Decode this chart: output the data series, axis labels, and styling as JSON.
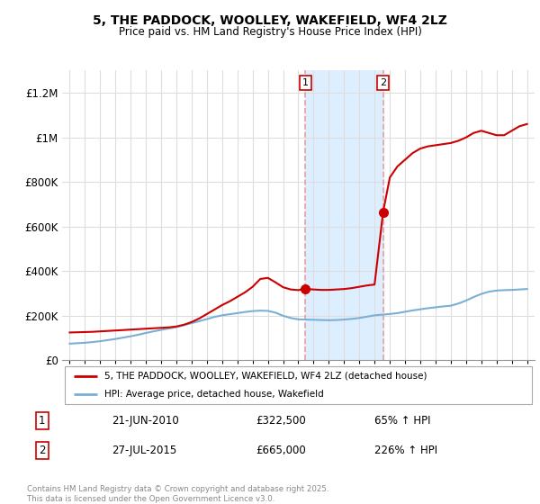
{
  "title": "5, THE PADDOCK, WOOLLEY, WAKEFIELD, WF4 2LZ",
  "subtitle": "Price paid vs. HM Land Registry's House Price Index (HPI)",
  "legend_line1": "5, THE PADDOCK, WOOLLEY, WAKEFIELD, WF4 2LZ (detached house)",
  "legend_line2": "HPI: Average price, detached house, Wakefield",
  "footer": "Contains HM Land Registry data © Crown copyright and database right 2025.\nThis data is licensed under the Open Government Licence v3.0.",
  "sale1_date": "21-JUN-2010",
  "sale1_price": 322500,
  "sale1_label": "£322,500",
  "sale1_hpi": "65% ↑ HPI",
  "sale2_date": "27-JUL-2015",
  "sale2_price": 665000,
  "sale2_label": "£665,000",
  "sale2_hpi": "226% ↑ HPI",
  "ylim": [
    0,
    1300000
  ],
  "yticks": [
    0,
    200000,
    400000,
    600000,
    800000,
    1000000,
    1200000
  ],
  "ytick_labels": [
    "£0",
    "£200K",
    "£400K",
    "£600K",
    "£800K",
    "£1M",
    "£1.2M"
  ],
  "red_color": "#cc0000",
  "blue_color": "#7bafd4",
  "vline_color": "#e8a0a0",
  "span_color": "#ddeeff",
  "sale1_vline_x": 2010.47,
  "sale2_vline_x": 2015.56,
  "hpi_x": [
    1995.0,
    1995.5,
    1996.0,
    1996.5,
    1997.0,
    1997.5,
    1998.0,
    1998.5,
    1999.0,
    1999.5,
    2000.0,
    2000.5,
    2001.0,
    2001.5,
    2002.0,
    2002.5,
    2003.0,
    2003.5,
    2004.0,
    2004.5,
    2005.0,
    2005.5,
    2006.0,
    2006.5,
    2007.0,
    2007.5,
    2008.0,
    2008.5,
    2009.0,
    2009.5,
    2010.0,
    2010.5,
    2011.0,
    2011.5,
    2012.0,
    2012.5,
    2013.0,
    2013.5,
    2014.0,
    2014.5,
    2015.0,
    2015.5,
    2016.0,
    2016.5,
    2017.0,
    2017.5,
    2018.0,
    2018.5,
    2019.0,
    2019.5,
    2020.0,
    2020.5,
    2021.0,
    2021.5,
    2022.0,
    2022.5,
    2023.0,
    2023.5,
    2024.0,
    2024.5,
    2025.0
  ],
  "hpi_y": [
    75000,
    77000,
    79000,
    82000,
    86000,
    91000,
    96000,
    102000,
    108000,
    115000,
    123000,
    130000,
    137000,
    143000,
    149000,
    158000,
    167000,
    176000,
    185000,
    195000,
    202000,
    207000,
    212000,
    217000,
    221000,
    223000,
    222000,
    214000,
    200000,
    190000,
    184000,
    183000,
    182000,
    181000,
    180000,
    181000,
    183000,
    186000,
    190000,
    196000,
    202000,
    205000,
    208000,
    212000,
    218000,
    224000,
    229000,
    234000,
    238000,
    242000,
    245000,
    255000,
    268000,
    284000,
    298000,
    308000,
    313000,
    315000,
    316000,
    318000,
    320000
  ],
  "red_x": [
    1995.0,
    1995.5,
    1996.0,
    1996.5,
    1997.0,
    1997.5,
    1998.0,
    1998.5,
    1999.0,
    1999.5,
    2000.0,
    2000.5,
    2001.0,
    2001.5,
    2002.0,
    2002.5,
    2003.0,
    2003.5,
    2004.0,
    2004.5,
    2005.0,
    2005.5,
    2006.0,
    2006.5,
    2007.0,
    2007.5,
    2008.0,
    2008.5,
    2009.0,
    2009.5,
    2010.0,
    2010.47,
    2010.5,
    2011.0,
    2011.5,
    2012.0,
    2012.5,
    2013.0,
    2013.5,
    2014.0,
    2014.5,
    2015.0,
    2015.56,
    2016.0,
    2016.5,
    2017.0,
    2017.5,
    2018.0,
    2018.5,
    2019.0,
    2019.5,
    2020.0,
    2020.5,
    2021.0,
    2021.5,
    2022.0,
    2022.5,
    2023.0,
    2023.5,
    2024.0,
    2024.5,
    2025.0
  ],
  "red_y": [
    125000,
    126000,
    127000,
    128000,
    130000,
    132000,
    134000,
    136000,
    138000,
    140000,
    142000,
    144000,
    146000,
    148000,
    152000,
    160000,
    172000,
    188000,
    208000,
    228000,
    248000,
    265000,
    285000,
    305000,
    330000,
    365000,
    370000,
    350000,
    328000,
    318000,
    315000,
    322500,
    320000,
    318000,
    316000,
    316000,
    318000,
    320000,
    324000,
    330000,
    336000,
    340000,
    665000,
    820000,
    870000,
    900000,
    930000,
    950000,
    960000,
    965000,
    970000,
    975000,
    985000,
    1000000,
    1020000,
    1030000,
    1020000,
    1010000,
    1010000,
    1030000,
    1050000,
    1060000
  ]
}
